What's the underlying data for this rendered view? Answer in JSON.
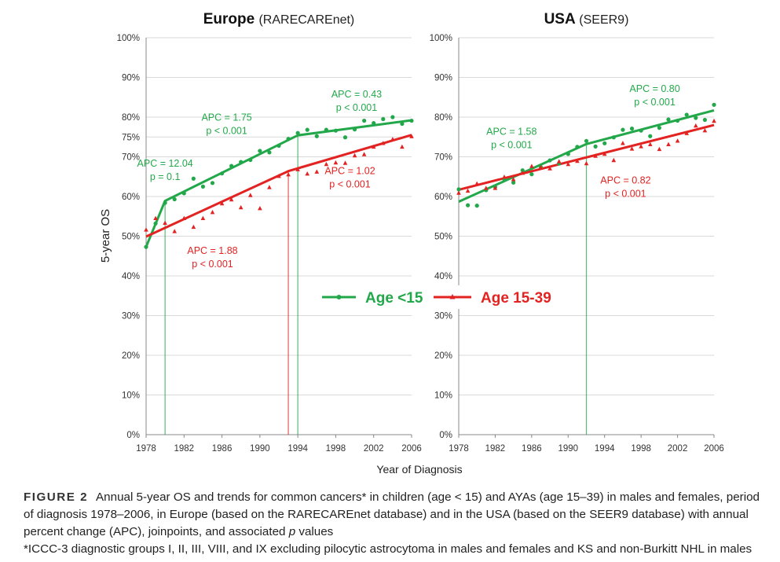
{
  "figure": {
    "ylabel": "5-year OS",
    "xlabel": "Year of Diagnosis",
    "legend": {
      "placement": "center",
      "entries": [
        {
          "name": "Age <15",
          "color": "#22a84a",
          "marker": "circle"
        },
        {
          "name": "Age 15-39",
          "color": "#e32222",
          "marker": "triangle"
        }
      ]
    }
  },
  "chart_data": [
    {
      "type": "line",
      "title_bold": "Europe",
      "title_rest": "(RARECAREnet)",
      "xlim": [
        1978,
        2006
      ],
      "ylim": [
        0,
        100
      ],
      "x_ticks": [
        "1978",
        "1982",
        "1986",
        "1990",
        "1994",
        "1998",
        "2002",
        "2006"
      ],
      "x_tick_values": [
        1978,
        1982,
        1986,
        1990,
        1994,
        1998,
        2002,
        2006
      ],
      "y_ticks": [
        "0%",
        "10%",
        "20%",
        "30%",
        "40%",
        "50%",
        "60%",
        "70%",
        "75%",
        "80%",
        "90%",
        "100%"
      ],
      "y_tick_values": [
        0,
        10,
        20,
        30,
        40,
        50,
        60,
        70,
        75,
        80,
        90,
        100
      ],
      "series": [
        {
          "name": "Age <15",
          "color": "#22a84a",
          "marker": "circle",
          "points": [
            [
              1978,
              47.3
            ],
            [
              1979,
              53.2
            ],
            [
              1980,
              58.4
            ],
            [
              1981,
              59.3
            ],
            [
              1982,
              60.8
            ],
            [
              1983,
              64.5
            ],
            [
              1984,
              62.5
            ],
            [
              1985,
              63.4
            ],
            [
              1986,
              65.8
            ],
            [
              1987,
              67.7
            ],
            [
              1988,
              68.7
            ],
            [
              1989,
              69.2
            ],
            [
              1990,
              71.5
            ],
            [
              1991,
              71.1
            ],
            [
              1992,
              72.8
            ],
            [
              1993,
              74.5
            ],
            [
              1994,
              76.0
            ],
            [
              1995,
              76.8
            ],
            [
              1996,
              75.2
            ],
            [
              1997,
              76.8
            ],
            [
              1998,
              76.6
            ],
            [
              1999,
              74.9
            ],
            [
              2000,
              76.9
            ],
            [
              2001,
              79.1
            ],
            [
              2002,
              78.5
            ],
            [
              2003,
              79.5
            ],
            [
              2004,
              80.0
            ],
            [
              2005,
              78.3
            ],
            [
              2006,
              79.1
            ]
          ],
          "trend": [
            [
              1978,
              47.3
            ],
            [
              1980,
              58.9
            ],
            [
              1994,
              75.4
            ],
            [
              2006,
              79.2
            ]
          ],
          "joinpoints": [
            1980,
            1994
          ]
        },
        {
          "name": "Age 15-39",
          "color": "#e32222",
          "marker": "triangle",
          "points": [
            [
              1978,
              51.6
            ],
            [
              1979,
              54.5
            ],
            [
              1980,
              53.3
            ],
            [
              1981,
              51.2
            ],
            [
              1982,
              54.5
            ],
            [
              1983,
              52.3
            ],
            [
              1984,
              54.5
            ],
            [
              1985,
              56.0
            ],
            [
              1986,
              58.2
            ],
            [
              1987,
              59.2
            ],
            [
              1988,
              57.2
            ],
            [
              1989,
              60.3
            ],
            [
              1990,
              57.0
            ],
            [
              1991,
              62.3
            ],
            [
              1992,
              65.1
            ],
            [
              1993,
              65.5
            ],
            [
              1994,
              66.8
            ],
            [
              1995,
              65.7
            ],
            [
              1996,
              66.2
            ],
            [
              1997,
              68.1
            ],
            [
              1998,
              68.5
            ],
            [
              1999,
              68.4
            ],
            [
              2000,
              70.3
            ],
            [
              2001,
              70.6
            ],
            [
              2002,
              72.5
            ],
            [
              2003,
              73.4
            ],
            [
              2004,
              74.4
            ],
            [
              2005,
              72.5
            ],
            [
              2006,
              75.1
            ]
          ],
          "trend": [
            [
              1978,
              49.9
            ],
            [
              1993,
              66.4
            ],
            [
              2006,
              75.5
            ]
          ],
          "joinpoints": [
            1993
          ]
        }
      ],
      "annotations": [
        {
          "text": [
            "APC = 12.04",
            "p = 0.1"
          ],
          "color": "#22a84a",
          "anchor": "middle",
          "x": 1980.0,
          "y": 67.5
        },
        {
          "text": [
            "APC = 1.75",
            "p < 0.001"
          ],
          "color": "#22a84a",
          "anchor": "middle",
          "x": 1986.5,
          "y": 79.1
        },
        {
          "text": [
            "APC = 0.43",
            "p < 0.001"
          ],
          "color": "#22a84a",
          "anchor": "middle",
          "x": 2000.2,
          "y": 85.0
        },
        {
          "text": [
            "APC = 1.02",
            "p < 0.001"
          ],
          "color": "#e32222",
          "anchor": "middle",
          "x": 1999.5,
          "y": 65.6
        },
        {
          "text": [
            "APC = 1.88",
            "p < 0.001"
          ],
          "color": "#e32222",
          "anchor": "middle",
          "x": 1985.0,
          "y": 45.5
        }
      ]
    },
    {
      "type": "line",
      "title_bold": "USA",
      "title_rest": "(SEER9)",
      "xlim": [
        1978,
        2006
      ],
      "ylim": [
        0,
        100
      ],
      "x_ticks": [
        "1978",
        "1982",
        "1986",
        "1990",
        "1994",
        "1998",
        "2002",
        "2006"
      ],
      "x_tick_values": [
        1978,
        1982,
        1986,
        1990,
        1994,
        1998,
        2002,
        2006
      ],
      "y_ticks": [
        "0%",
        "10%",
        "20%",
        "30%",
        "40%",
        "50%",
        "60%",
        "70%",
        "80%",
        "90%",
        "100%"
      ],
      "y_tick_values": [
        0,
        10,
        20,
        30,
        40,
        50,
        60,
        70,
        80,
        90,
        100
      ],
      "series": [
        {
          "name": "Age <15",
          "color": "#22a84a",
          "marker": "circle",
          "points": [
            [
              1978,
              61.8
            ],
            [
              1979,
              57.8
            ],
            [
              1980,
              57.7
            ],
            [
              1981,
              61.6
            ],
            [
              1982,
              62.4
            ],
            [
              1983,
              64.3
            ],
            [
              1984,
              63.5
            ],
            [
              1985,
              66.6
            ],
            [
              1986,
              65.6
            ],
            [
              1987,
              67.4
            ],
            [
              1988,
              69.1
            ],
            [
              1989,
              68.3
            ],
            [
              1990,
              70.7
            ],
            [
              1991,
              72.5
            ],
            [
              1992,
              74.0
            ],
            [
              1993,
              72.6
            ],
            [
              1994,
              73.4
            ],
            [
              1995,
              74.9
            ],
            [
              1996,
              76.8
            ],
            [
              1997,
              77.1
            ],
            [
              1998,
              76.6
            ],
            [
              1999,
              75.2
            ],
            [
              2000,
              77.3
            ],
            [
              2001,
              79.4
            ],
            [
              2002,
              79.1
            ],
            [
              2003,
              80.6
            ],
            [
              2004,
              79.8
            ],
            [
              2005,
              79.3
            ],
            [
              2006,
              83.1
            ]
          ],
          "trend": [
            [
              1978,
              58.7
            ],
            [
              1992,
              73.2
            ],
            [
              2006,
              81.7
            ]
          ],
          "joinpoints": [
            1992
          ]
        },
        {
          "name": "Age 15-39",
          "color": "#e32222",
          "marker": "triangle",
          "points": [
            [
              1978,
              60.9
            ],
            [
              1979,
              61.4
            ],
            [
              1980,
              63.2
            ],
            [
              1981,
              62.1
            ],
            [
              1982,
              62.1
            ],
            [
              1983,
              64.9
            ],
            [
              1984,
              64.3
            ],
            [
              1985,
              65.9
            ],
            [
              1986,
              67.6
            ],
            [
              1987,
              67.3
            ],
            [
              1988,
              67.0
            ],
            [
              1989,
              68.8
            ],
            [
              1990,
              68.1
            ],
            [
              1991,
              68.9
            ],
            [
              1992,
              68.3
            ],
            [
              1993,
              70.2
            ],
            [
              1994,
              70.7
            ],
            [
              1995,
              69.1
            ],
            [
              1996,
              73.4
            ],
            [
              1997,
              72.0
            ],
            [
              1998,
              72.6
            ],
            [
              1999,
              73.1
            ],
            [
              2000,
              71.9
            ],
            [
              2001,
              73.1
            ],
            [
              2002,
              74.0
            ],
            [
              2003,
              75.9
            ],
            [
              2004,
              77.8
            ],
            [
              2005,
              76.6
            ],
            [
              2006,
              79.0
            ]
          ],
          "trend": [
            [
              1978,
              61.7
            ],
            [
              2006,
              78.0
            ]
          ],
          "joinpoints": []
        }
      ],
      "annotations": [
        {
          "text": [
            "APC = 1.58",
            "p < 0.001"
          ],
          "color": "#22a84a",
          "anchor": "middle",
          "x": 1983.8,
          "y": 75.5
        },
        {
          "text": [
            "APC = 0.80",
            "p < 0.001"
          ],
          "color": "#22a84a",
          "anchor": "middle",
          "x": 1999.5,
          "y": 86.3
        },
        {
          "text": [
            "APC = 0.82",
            "p < 0.001"
          ],
          "color": "#e32222",
          "anchor": "middle",
          "x": 1996.3,
          "y": 63.3
        }
      ]
    }
  ],
  "caption": {
    "label": "FIGURE 2",
    "line1": "Annual 5-year OS and trends for common cancers* in children (age < 15) and AYAs (age 15–39) in males and females, period of diagnosis 1978–2006, in Europe (based on the RARECAREnet database) and in the USA (based on the SEER9 database) with annual percent change (APC), joinpoints, and associated ",
    "italic": "p",
    "line1_end": " values",
    "line2": "*ICCC-3 diagnostic groups I, II, III, VIII, and IX excluding pilocytic astrocytoma in males and females and KS and non-Burkitt NHL in males"
  }
}
